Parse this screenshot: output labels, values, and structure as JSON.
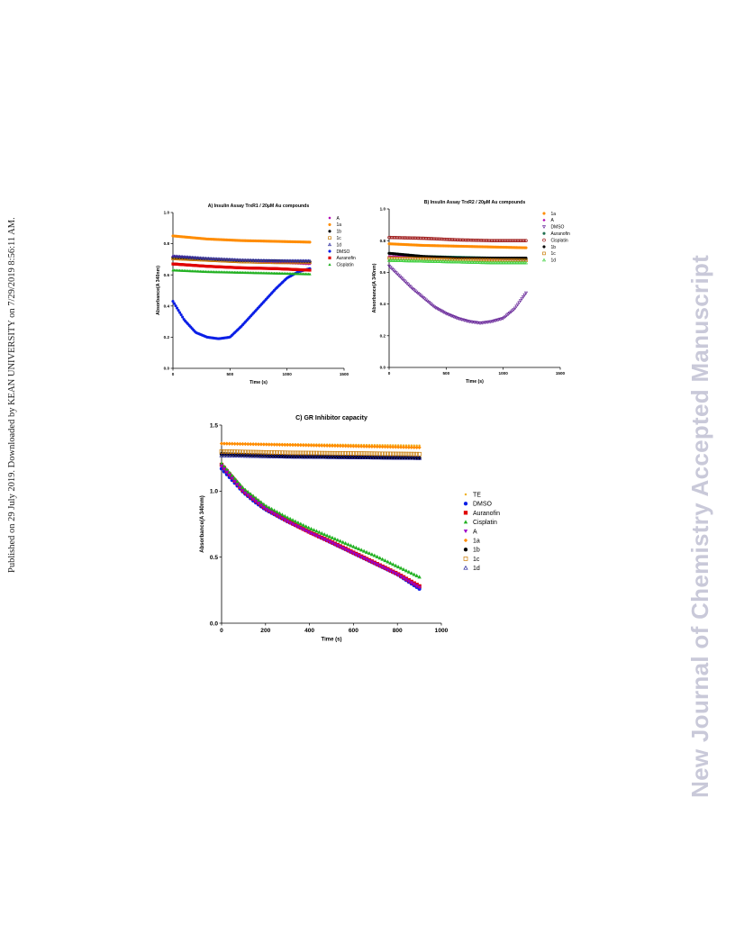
{
  "margin": {
    "left_text": "Published on 29 July 2019. Downloaded by KEAN UNIVERSITY on 7/29/2019 8:56:11 AM.",
    "right_watermark": "New Journal of Chemistry Accepted Manuscript"
  },
  "chart_data": [
    {
      "id": "A",
      "type": "scatter",
      "title": "A) Insulin Assay TrxR1 / 20µM Au compounds",
      "xlabel": "Time (s)",
      "ylabel": "Absorbance(A 340nm)",
      "xlim": [
        0,
        1500
      ],
      "ylim": [
        0,
        1.0
      ],
      "xticks": [
        0,
        500,
        1000,
        1500
      ],
      "yticks": [
        0.0,
        0.2,
        0.4,
        0.6,
        0.8,
        1.0
      ],
      "xtick_labels": [
        "0",
        "500",
        "1000",
        "1500"
      ],
      "ytick_labels": [
        "0.0",
        "0.2",
        "0.4",
        "0.6",
        "0.8",
        "1.0"
      ],
      "legend_position": "right",
      "series": [
        {
          "name": "A",
          "color": "#b000b0",
          "marker": "diamond",
          "points": [
            [
              0,
              0.72
            ],
            [
              300,
              0.7
            ],
            [
              600,
              0.69
            ],
            [
              900,
              0.68
            ],
            [
              1200,
              0.67
            ]
          ]
        },
        {
          "name": "1a",
          "color": "#ff8c00",
          "marker": "dot",
          "points": [
            [
              0,
              0.85
            ],
            [
              300,
              0.83
            ],
            [
              600,
              0.82
            ],
            [
              900,
              0.815
            ],
            [
              1200,
              0.81
            ]
          ]
        },
        {
          "name": "1b",
          "color": "#000000",
          "marker": "dot",
          "points": [
            [
              0,
              0.71
            ],
            [
              300,
              0.7
            ],
            [
              600,
              0.69
            ],
            [
              900,
              0.69
            ],
            [
              1200,
              0.685
            ]
          ]
        },
        {
          "name": "1c",
          "color": "#c87800",
          "marker": "square-open",
          "points": [
            [
              0,
              0.705
            ],
            [
              300,
              0.695
            ],
            [
              600,
              0.685
            ],
            [
              900,
              0.68
            ],
            [
              1200,
              0.68
            ]
          ]
        },
        {
          "name": "1d",
          "color": "#3030a0",
          "marker": "triangle-open",
          "points": [
            [
              0,
              0.72
            ],
            [
              300,
              0.705
            ],
            [
              600,
              0.695
            ],
            [
              900,
              0.69
            ],
            [
              1200,
              0.69
            ]
          ]
        },
        {
          "name": "DMSO",
          "color": "#0a1ee6",
          "marker": "dot",
          "points": [
            [
              0,
              0.43
            ],
            [
              100,
              0.31
            ],
            [
              200,
              0.23
            ],
            [
              300,
              0.2
            ],
            [
              400,
              0.19
            ],
            [
              500,
              0.2
            ],
            [
              600,
              0.27
            ],
            [
              700,
              0.35
            ],
            [
              800,
              0.43
            ],
            [
              900,
              0.51
            ],
            [
              1000,
              0.58
            ],
            [
              1100,
              0.62
            ],
            [
              1200,
              0.64
            ]
          ]
        },
        {
          "name": "Auranofin",
          "color": "#e00000",
          "marker": "square",
          "points": [
            [
              0,
              0.67
            ],
            [
              300,
              0.655
            ],
            [
              600,
              0.645
            ],
            [
              900,
              0.64
            ],
            [
              1200,
              0.63
            ]
          ]
        },
        {
          "name": "Cisplatin",
          "color": "#20b020",
          "marker": "triangle",
          "points": [
            [
              0,
              0.63
            ],
            [
              300,
              0.62
            ],
            [
              600,
              0.615
            ],
            [
              900,
              0.61
            ],
            [
              1200,
              0.605
            ]
          ]
        }
      ]
    },
    {
      "id": "B",
      "type": "scatter",
      "title": "B) Insulin Assay TrxR2 / 20µM Au compounds",
      "xlabel": "Time (s)",
      "ylabel": "Absorbance(A 340nm)",
      "xlim": [
        0,
        1500
      ],
      "ylim": [
        0,
        1.0
      ],
      "xticks": [
        0,
        500,
        1000,
        1500
      ],
      "yticks": [
        0.0,
        0.2,
        0.4,
        0.6,
        0.8,
        1.0
      ],
      "xtick_labels": [
        "0",
        "500",
        "1000",
        "1500"
      ],
      "ytick_labels": [
        "0.0",
        "0.2",
        "0.4",
        "0.6",
        "0.8",
        "1.0"
      ],
      "legend_position": "right",
      "series": [
        {
          "name": "1a",
          "color": "#ff8c00",
          "marker": "dot",
          "points": [
            [
              0,
              0.78
            ],
            [
              300,
              0.77
            ],
            [
              600,
              0.765
            ],
            [
              900,
              0.76
            ],
            [
              1200,
              0.755
            ]
          ]
        },
        {
          "name": "A",
          "color": "#b000b0",
          "marker": "diamond",
          "points": [
            [
              0,
              0.7
            ],
            [
              300,
              0.695
            ],
            [
              600,
              0.69
            ],
            [
              900,
              0.685
            ],
            [
              1200,
              0.68
            ]
          ]
        },
        {
          "name": "DMSO",
          "color": "#6a2a9a",
          "marker": "triangle-down-open",
          "points": [
            [
              0,
              0.64
            ],
            [
              100,
              0.57
            ],
            [
              200,
              0.5
            ],
            [
              300,
              0.44
            ],
            [
              400,
              0.38
            ],
            [
              500,
              0.34
            ],
            [
              600,
              0.31
            ],
            [
              700,
              0.29
            ],
            [
              800,
              0.28
            ],
            [
              900,
              0.29
            ],
            [
              1000,
              0.31
            ],
            [
              1100,
              0.37
            ],
            [
              1200,
              0.47
            ]
          ]
        },
        {
          "name": "Auranofin",
          "color": "#207050",
          "marker": "dot",
          "points": [
            [
              0,
              0.72
            ],
            [
              300,
              0.7
            ],
            [
              600,
              0.695
            ],
            [
              900,
              0.69
            ],
            [
              1200,
              0.685
            ]
          ]
        },
        {
          "name": "Cisplatin",
          "color": "#a02020",
          "marker": "circle-open",
          "points": [
            [
              0,
              0.82
            ],
            [
              300,
              0.815
            ],
            [
              600,
              0.805
            ],
            [
              900,
              0.8
            ],
            [
              1200,
              0.8
            ]
          ]
        },
        {
          "name": "1b",
          "color": "#000000",
          "marker": "dot",
          "points": [
            [
              0,
              0.72
            ],
            [
              300,
              0.7
            ],
            [
              600,
              0.69
            ],
            [
              900,
              0.69
            ],
            [
              1200,
              0.69
            ]
          ]
        },
        {
          "name": "1c",
          "color": "#c87800",
          "marker": "square-open",
          "points": [
            [
              0,
              0.69
            ],
            [
              300,
              0.685
            ],
            [
              600,
              0.68
            ],
            [
              900,
              0.678
            ],
            [
              1200,
              0.675
            ]
          ]
        },
        {
          "name": "1d",
          "color": "#40d040",
          "marker": "triangle-open",
          "points": [
            [
              0,
              0.675
            ],
            [
              300,
              0.67
            ],
            [
              600,
              0.665
            ],
            [
              900,
              0.66
            ],
            [
              1200,
              0.66
            ]
          ]
        }
      ]
    },
    {
      "id": "C",
      "type": "scatter",
      "title": "C) GR Inhibitor capacity",
      "xlabel": "Time (s)",
      "ylabel": "Absorbance(A 340nm)",
      "xlim": [
        0,
        1000
      ],
      "ylim": [
        0,
        1.5
      ],
      "xticks": [
        0,
        200,
        400,
        600,
        800,
        1000
      ],
      "yticks": [
        0.0,
        0.5,
        1.0,
        1.5
      ],
      "xtick_labels": [
        "0",
        "200",
        "400",
        "600",
        "800",
        "1000"
      ],
      "ytick_labels": [
        "0.0",
        "0.5",
        "1.0",
        "1.5"
      ],
      "legend_position": "right",
      "series": [
        {
          "name": "TE",
          "color": "#f0b020",
          "marker": "dot-small",
          "points": [
            [
              0,
              1.36
            ],
            [
              300,
              1.355
            ],
            [
              600,
              1.35
            ],
            [
              900,
              1.345
            ]
          ]
        },
        {
          "name": "DMSO",
          "color": "#0a1ee6",
          "marker": "dot",
          "points": [
            [
              0,
              1.17
            ],
            [
              50,
              1.08
            ],
            [
              100,
              0.99
            ],
            [
              150,
              0.92
            ],
            [
              200,
              0.86
            ],
            [
              300,
              0.77
            ],
            [
              400,
              0.69
            ],
            [
              500,
              0.61
            ],
            [
              600,
              0.53
            ],
            [
              700,
              0.45
            ],
            [
              800,
              0.37
            ],
            [
              900,
              0.26
            ]
          ]
        },
        {
          "name": "Auranofin",
          "color": "#e00000",
          "marker": "square",
          "points": [
            [
              0,
              1.2
            ],
            [
              100,
              1.0
            ],
            [
              200,
              0.87
            ],
            [
              300,
              0.775
            ],
            [
              400,
              0.69
            ],
            [
              500,
              0.615
            ],
            [
              600,
              0.535
            ],
            [
              700,
              0.455
            ],
            [
              800,
              0.375
            ],
            [
              900,
              0.28
            ]
          ]
        },
        {
          "name": "Cisplatin",
          "color": "#20b020",
          "marker": "triangle",
          "points": [
            [
              0,
              1.21
            ],
            [
              100,
              1.02
            ],
            [
              200,
              0.89
            ],
            [
              300,
              0.8
            ],
            [
              400,
              0.72
            ],
            [
              500,
              0.65
            ],
            [
              600,
              0.58
            ],
            [
              700,
              0.51
            ],
            [
              800,
              0.43
            ],
            [
              900,
              0.35
            ]
          ]
        },
        {
          "name": "A",
          "color": "#9a00c8",
          "marker": "triangle-down",
          "points": [
            [
              0,
              1.19
            ],
            [
              100,
              0.995
            ],
            [
              200,
              0.865
            ],
            [
              300,
              0.77
            ],
            [
              400,
              0.685
            ],
            [
              500,
              0.61
            ],
            [
              600,
              0.53
            ],
            [
              700,
              0.45
            ],
            [
              800,
              0.37
            ],
            [
              900,
              0.27
            ]
          ]
        },
        {
          "name": "1a",
          "color": "#ff8c00",
          "marker": "diamond",
          "points": [
            [
              0,
              1.36
            ],
            [
              300,
              1.35
            ],
            [
              600,
              1.34
            ],
            [
              900,
              1.33
            ]
          ]
        },
        {
          "name": "1b",
          "color": "#000000",
          "marker": "dot",
          "points": [
            [
              0,
              1.28
            ],
            [
              300,
              1.265
            ],
            [
              600,
              1.258
            ],
            [
              900,
              1.25
            ]
          ]
        },
        {
          "name": "1c",
          "color": "#c87800",
          "marker": "square-open",
          "points": [
            [
              0,
              1.3
            ],
            [
              300,
              1.29
            ],
            [
              600,
              1.285
            ],
            [
              900,
              1.28
            ]
          ]
        },
        {
          "name": "1d",
          "color": "#202098",
          "marker": "triangle-open",
          "points": [
            [
              0,
              1.27
            ],
            [
              300,
              1.26
            ],
            [
              600,
              1.255
            ],
            [
              900,
              1.25
            ]
          ]
        }
      ]
    }
  ]
}
